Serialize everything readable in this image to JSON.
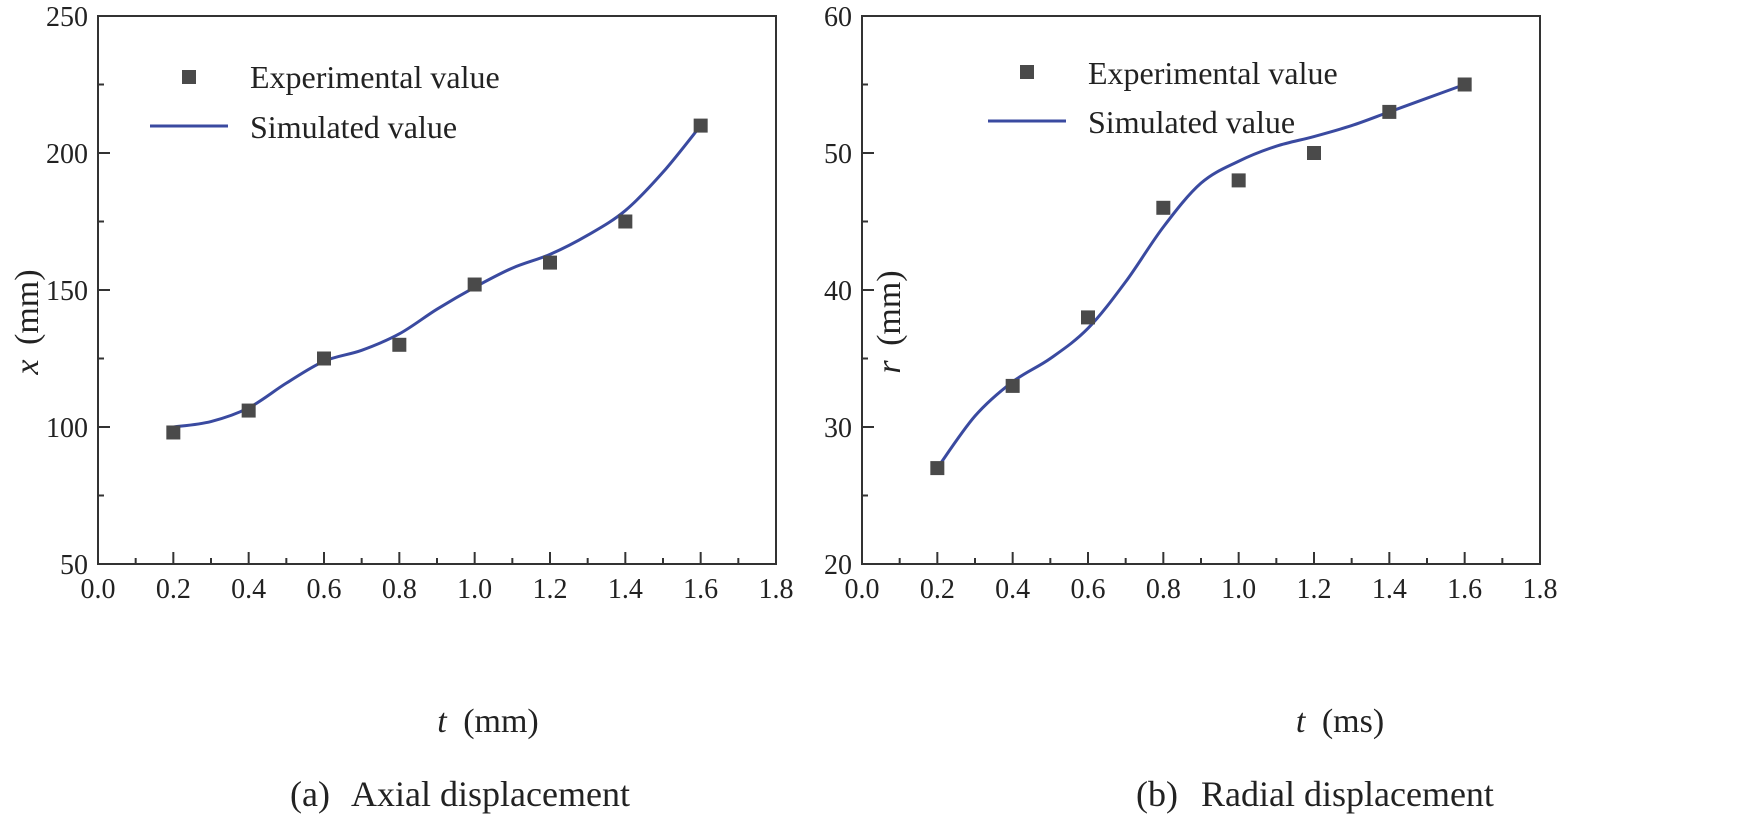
{
  "chart_data": [
    {
      "type": "scatter",
      "panel": "a",
      "caption_label": "(a)",
      "caption_text": "Axial displacement",
      "xlabel_var": "t",
      "xlabel_unit": "(mm)",
      "ylabel_var": "x",
      "ylabel_unit": "(mm)",
      "xlim": [
        0.0,
        1.8
      ],
      "ylim": [
        50,
        250
      ],
      "xticks": [
        "0.0",
        "0.2",
        "0.4",
        "0.6",
        "0.8",
        "1.0",
        "1.2",
        "1.4",
        "1.6",
        "1.8"
      ],
      "yticks": [
        "50",
        "100",
        "150",
        "200",
        "250"
      ],
      "legend_position": "top-left",
      "series": [
        {
          "name": "Experimental value",
          "kind": "markers",
          "color": "#4a4a4a",
          "x": [
            0.2,
            0.4,
            0.6,
            0.8,
            1.0,
            1.2,
            1.4,
            1.6
          ],
          "y": [
            98,
            106,
            125,
            130,
            152,
            160,
            175,
            210
          ]
        },
        {
          "name": "Simulated value",
          "kind": "line",
          "color": "#3a4aa0",
          "x": [
            0.2,
            0.3,
            0.4,
            0.5,
            0.6,
            0.7,
            0.8,
            0.9,
            1.0,
            1.1,
            1.2,
            1.3,
            1.4,
            1.5,
            1.6
          ],
          "y": [
            100,
            102,
            107,
            116,
            124,
            128,
            134,
            143,
            151,
            158,
            163,
            170,
            179,
            193,
            210
          ]
        }
      ]
    },
    {
      "type": "scatter",
      "panel": "b",
      "caption_label": "(b)",
      "caption_text": "Radial displacement",
      "xlabel_var": "t",
      "xlabel_unit": "(ms)",
      "ylabel_var": "r",
      "ylabel_unit": "(mm)",
      "xlim": [
        0.0,
        1.8
      ],
      "ylim": [
        20,
        60
      ],
      "xticks": [
        "0.0",
        "0.2",
        "0.4",
        "0.6",
        "0.8",
        "1.0",
        "1.2",
        "1.4",
        "1.6",
        "1.8"
      ],
      "yticks": [
        "20",
        "30",
        "40",
        "50",
        "60"
      ],
      "legend_position": "top-left",
      "series": [
        {
          "name": "Experimental value",
          "kind": "markers",
          "color": "#4a4a4a",
          "x": [
            0.2,
            0.4,
            0.6,
            0.8,
            1.0,
            1.2,
            1.4,
            1.6
          ],
          "y": [
            27,
            33,
            38,
            46,
            48,
            50,
            53,
            55
          ]
        },
        {
          "name": "Simulated value",
          "kind": "line",
          "color": "#3a4aa0",
          "x": [
            0.2,
            0.3,
            0.4,
            0.5,
            0.6,
            0.7,
            0.8,
            0.9,
            1.0,
            1.1,
            1.2,
            1.3,
            1.4,
            1.5,
            1.6
          ],
          "y": [
            27,
            30.8,
            33.3,
            35.0,
            37.2,
            40.6,
            44.6,
            47.8,
            49.4,
            50.5,
            51.2,
            52.0,
            53.0,
            54.0,
            55.0
          ]
        }
      ]
    }
  ]
}
